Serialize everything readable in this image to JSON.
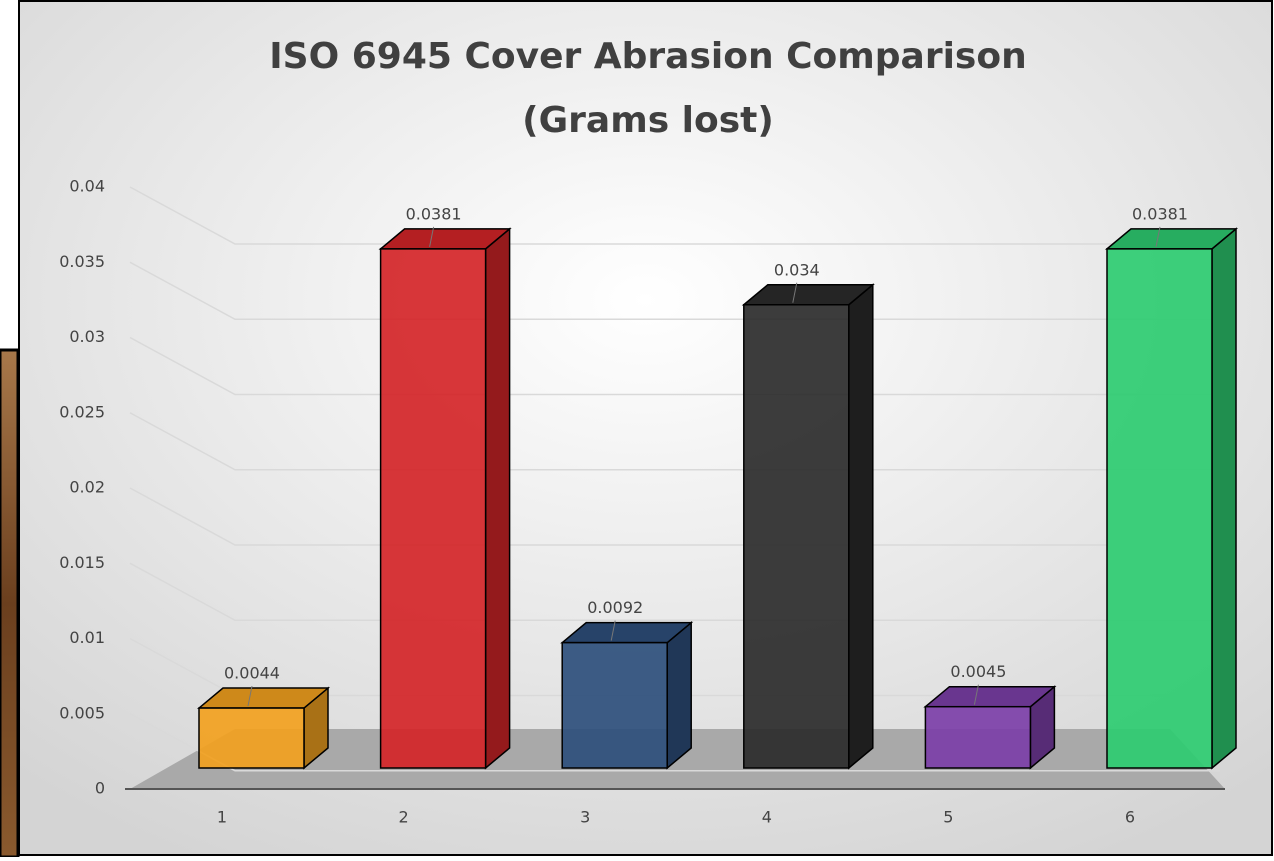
{
  "chart_data": {
    "type": "bar3d",
    "title": [
      "ISO 6945 Cover Abrasion Comparison",
      "(Grams lost)"
    ],
    "categories": [
      "1",
      "2",
      "3",
      "4",
      "5",
      "6"
    ],
    "values": [
      0.0044,
      0.0381,
      0.0092,
      0.034,
      0.0045,
      0.0381
    ],
    "colors": [
      "#f2a11f",
      "#d42528",
      "#2e4f7c",
      "#2b2b2b",
      "#7c3fa8",
      "#2ecc71"
    ],
    "ylim": [
      0,
      0.04
    ],
    "yticks": [
      0,
      0.005,
      0.01,
      0.015,
      0.02,
      0.025,
      0.03,
      0.035,
      0.04
    ],
    "grid": true
  }
}
